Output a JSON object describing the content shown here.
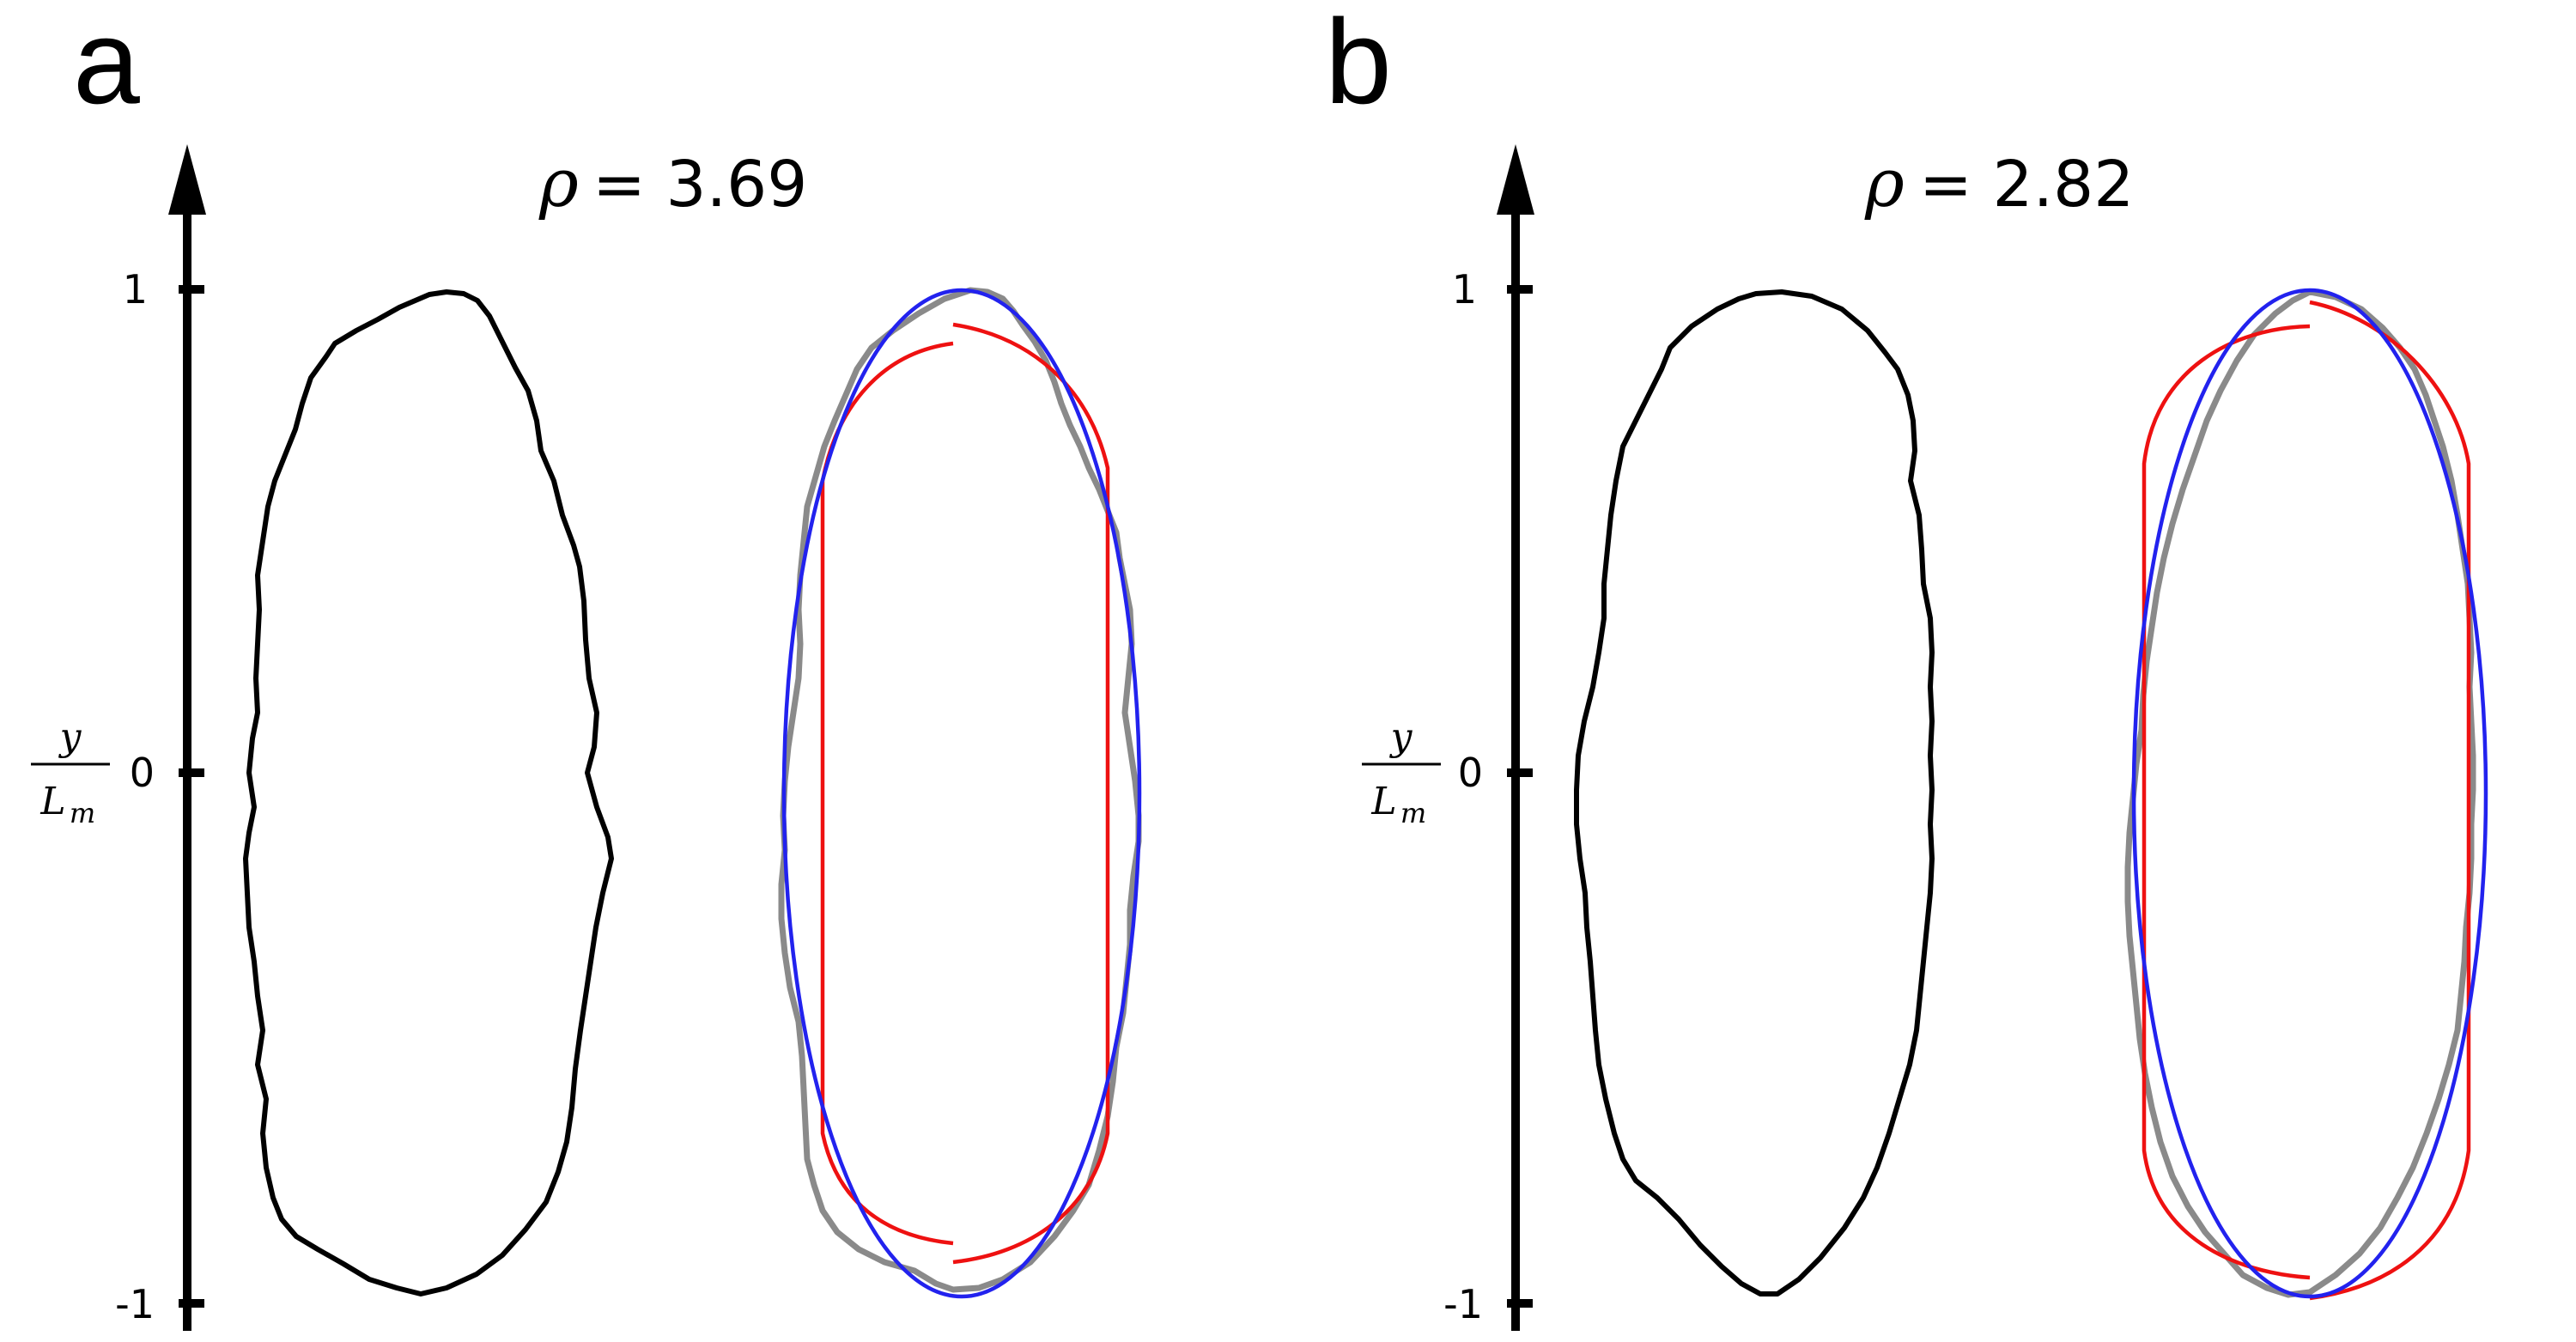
{
  "panels": [
    {
      "letter": "a",
      "rho_label": "= 3.69",
      "rho_symbol": "ρ",
      "axis": {
        "ticks": [
          "1",
          "0",
          "-1"
        ],
        "ylabel_numerator": "y",
        "ylabel_denominator": "L",
        "ylabel_subscript": "m"
      }
    },
    {
      "letter": "b",
      "rho_label": "= 2.82",
      "rho_symbol": "ρ",
      "axis": {
        "ticks": [
          "1",
          "0",
          "-1"
        ],
        "ylabel_numerator": "y",
        "ylabel_denominator": "L",
        "ylabel_subscript": "m"
      }
    }
  ],
  "colors": {
    "cell_outline": "#000000",
    "cell_overlay": "#8a8a8a",
    "capsule_fit": "#ee1111",
    "ellipse_fit": "#2222ee"
  }
}
